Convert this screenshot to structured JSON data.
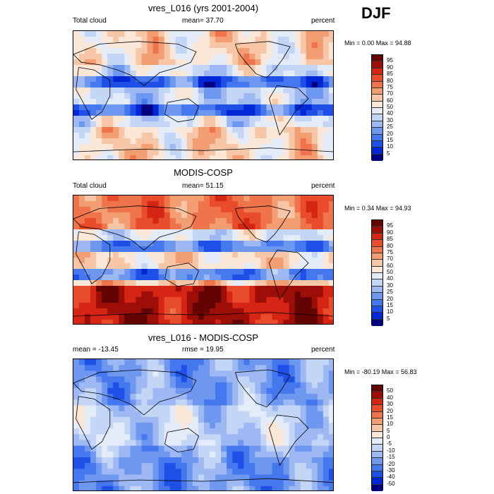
{
  "season": "DJF",
  "colors": [
    "#000080",
    "#0027d6",
    "#1e50e8",
    "#4577ee",
    "#6e98f0",
    "#9db8f2",
    "#c4d6f5",
    "#e3ecf8",
    "#fae7d7",
    "#f6c6a6",
    "#f39d73",
    "#ef744b",
    "#e84c2b",
    "#d42515",
    "#9e0e08",
    "#640402"
  ],
  "panels": [
    {
      "title": "vres_L016 (yrs 2001-2004)",
      "left_label": "Total cloud",
      "center_label": "mean=  37.70",
      "right_label": "percent",
      "minmax": "Min =   0.00 Max =  94.88",
      "levels": [
        "95",
        "90",
        "85",
        "80",
        "75",
        "70",
        "60",
        "50",
        "40",
        "30",
        "25",
        "20",
        "15",
        "10",
        "5"
      ],
      "mean_level": 0.38
    },
    {
      "title": "MODIS-COSP",
      "left_label": "Total cloud",
      "center_label": "mean=  51.15",
      "right_label": "percent",
      "minmax": "Min =   0.34 Max =  94.93",
      "levels": [
        "95",
        "90",
        "85",
        "80",
        "75",
        "70",
        "60",
        "50",
        "40",
        "30",
        "25",
        "20",
        "15",
        "10",
        "5"
      ],
      "mean_level": 0.51
    },
    {
      "title": "vres_L016 - MODIS-COSP",
      "left_label": "mean = -13.45",
      "center_label": "rmse =  19.95",
      "right_label": "percent",
      "minmax": "Min = -80.19 Max =  56.83",
      "levels": [
        "50",
        "40",
        "30",
        "20",
        "15",
        "10",
        "5",
        "0",
        "-5",
        "-10",
        "-15",
        "-20",
        "-30",
        "-40",
        "-50"
      ],
      "mean_level": -13.45
    }
  ]
}
